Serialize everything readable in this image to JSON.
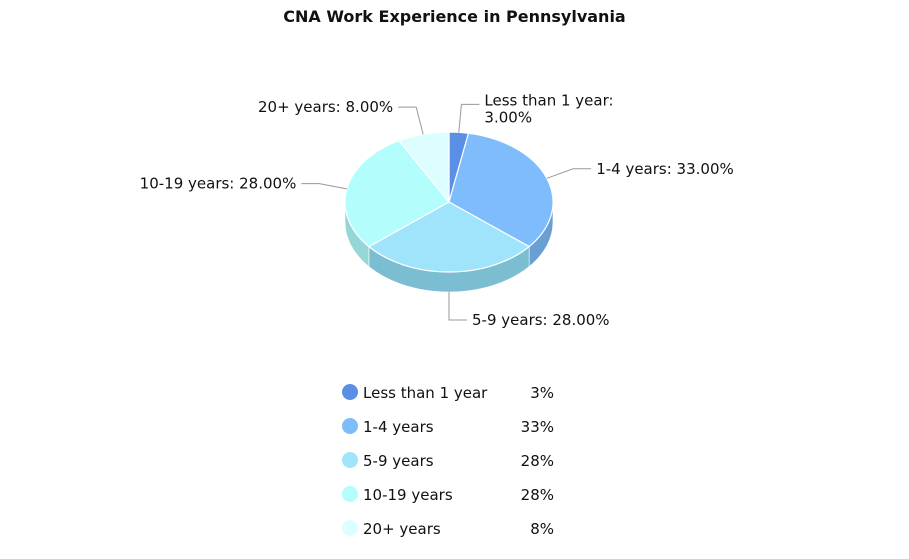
{
  "chart_data": {
    "type": "pie",
    "title": "CNA Work Experience in Pennsylvania",
    "slices": [
      {
        "name": "Less than 1 year",
        "value": 3.0,
        "label": "Less than 1 year: 3.00%",
        "legend_value": "3%",
        "color": "#5b8fe6",
        "side": "#4a78c2"
      },
      {
        "name": "1-4 years",
        "value": 33.0,
        "label": "1-4 years: 33.00%",
        "legend_value": "33%",
        "color": "#7fbcfc",
        "side": "#6a9fd4"
      },
      {
        "name": "5-9 years",
        "value": 28.0,
        "label": "5-9 years: 28.00%",
        "legend_value": "28%",
        "color": "#9fe4fb",
        "side": "#7bbdd1"
      },
      {
        "name": "10-19 years",
        "value": 28.0,
        "label": "10-19 years: 28.00%",
        "legend_value": "28%",
        "color": "#b3fefd",
        "side": "#95d6d6"
      },
      {
        "name": "20+ years",
        "value": 8.0,
        "label": "20+ years: 8.00%",
        "legend_value": "8%",
        "color": "#ddfefe",
        "side": "#b9d8d8"
      }
    ],
    "legend_position": "bottom"
  }
}
